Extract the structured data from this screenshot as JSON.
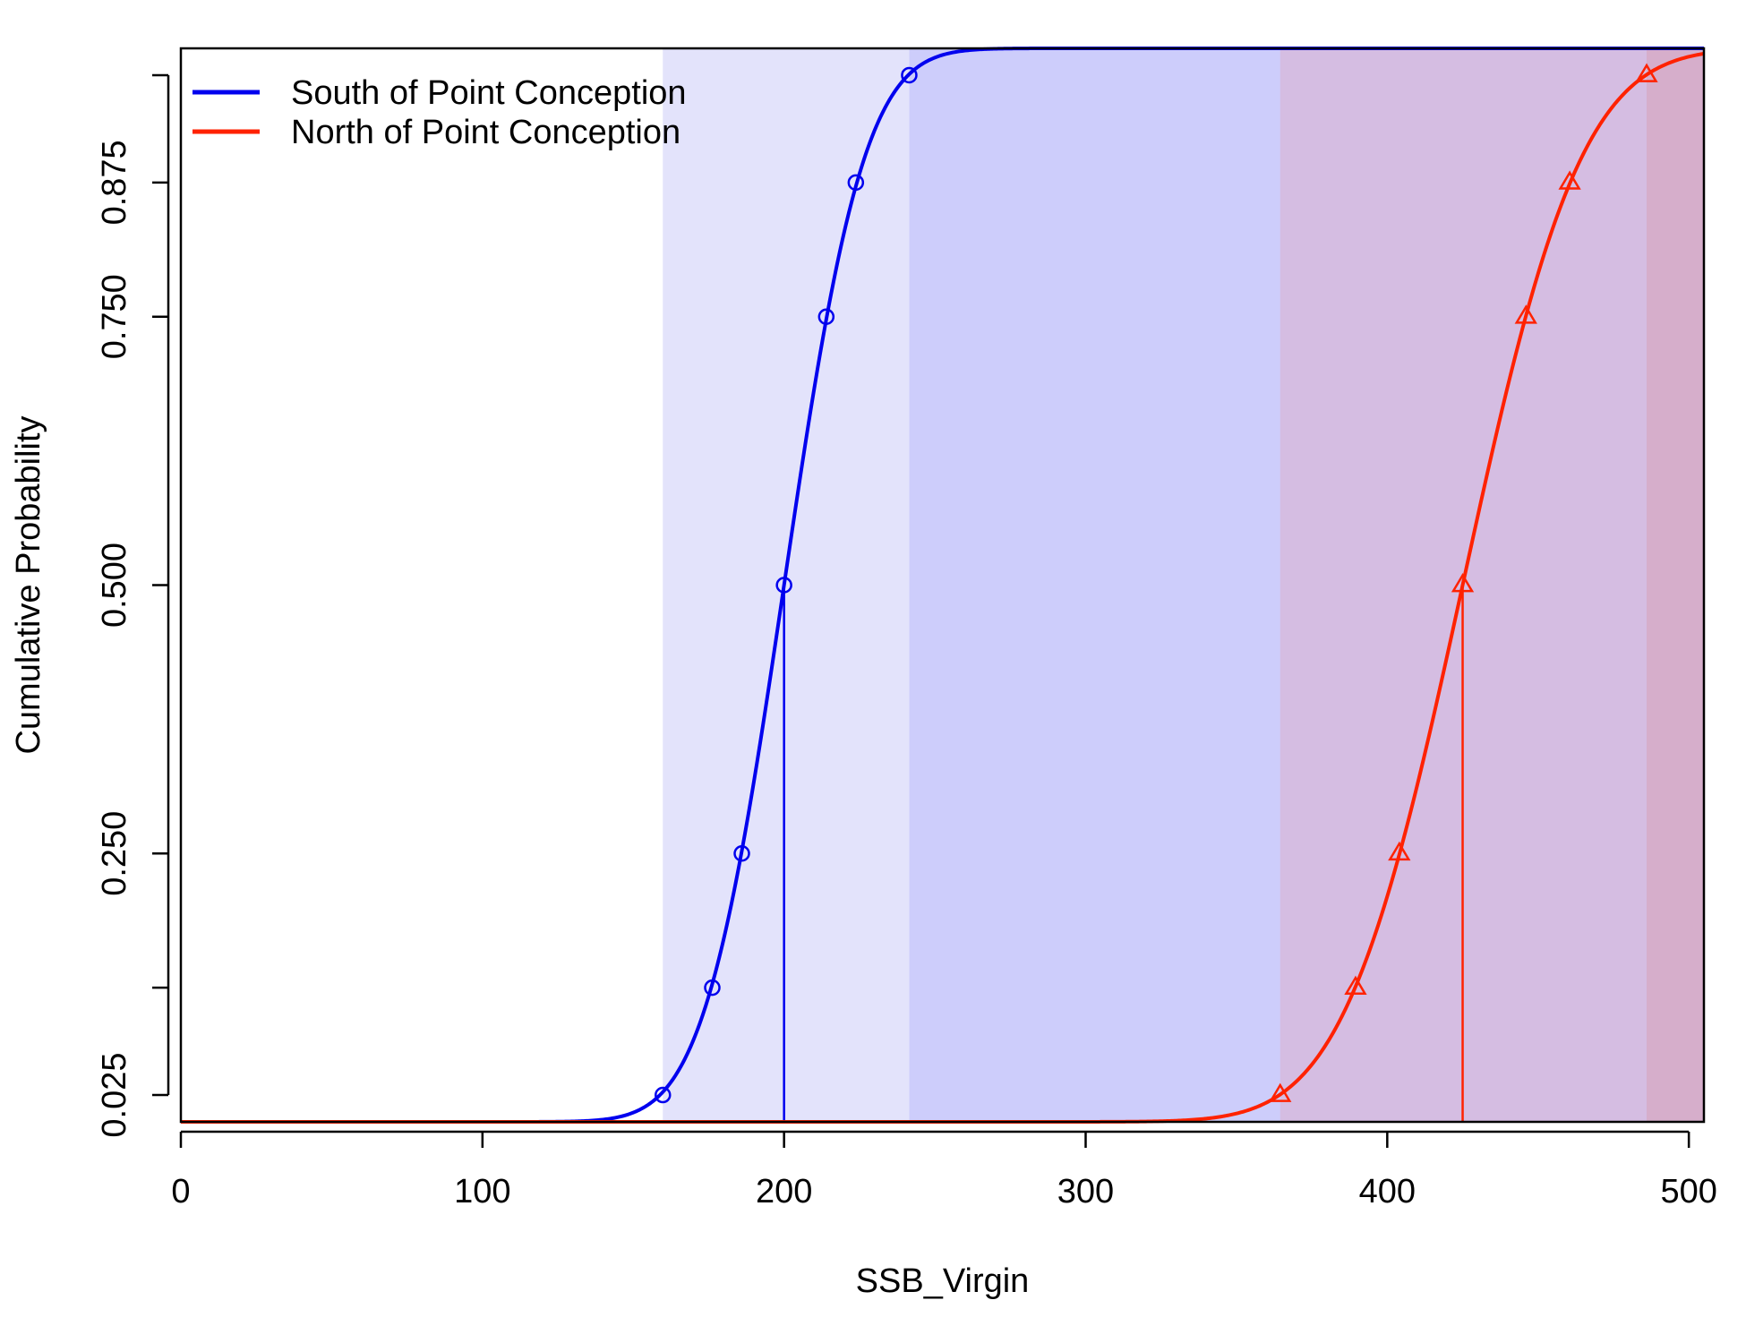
{
  "chart_data": {
    "type": "line",
    "title": "",
    "xlabel": "SSB_Virgin",
    "ylabel": "Cumulative Probability",
    "xlim": [
      0,
      505
    ],
    "ylim": [
      0,
      1
    ],
    "grid": false,
    "legend_position": "top-left",
    "x_ticks": [
      0,
      100,
      200,
      300,
      400,
      500
    ],
    "x_tick_labels": [
      "0",
      "100",
      "200",
      "300",
      "400",
      "500"
    ],
    "y_ticks": [
      0.025,
      0.25,
      0.5,
      0.75,
      0.875
    ],
    "y_tick_labels": [
      "0.025",
      "0.250",
      "0.500",
      "0.750",
      "0.875"
    ],
    "y_minor_ticks": [
      0.125,
      0.975
    ],
    "series": [
      {
        "name": "South of Point Conception",
        "color": "#0000ee",
        "marker": "circle",
        "distribution": {
          "type": "normal",
          "mean": 200,
          "sd": 21
        },
        "quantile_points": [
          {
            "p": 0.025,
            "x": 159.8
          },
          {
            "p": 0.125,
            "x": 176.2
          },
          {
            "p": 0.25,
            "x": 186.0
          },
          {
            "p": 0.5,
            "x": 200.0
          },
          {
            "p": 0.75,
            "x": 214.0
          },
          {
            "p": 0.875,
            "x": 223.8
          },
          {
            "p": 0.975,
            "x": 241.5
          }
        ],
        "median_x": 200,
        "interval_95": [
          159.8,
          241.5
        ]
      },
      {
        "name": "North of Point Conception",
        "color": "#ff2200",
        "marker": "triangle",
        "distribution": {
          "type": "normal",
          "mean": 425,
          "sd": 31
        },
        "quantile_points": [
          {
            "p": 0.025,
            "x": 364.5
          },
          {
            "p": 0.125,
            "x": 389.5
          },
          {
            "p": 0.25,
            "x": 404.0
          },
          {
            "p": 0.5,
            "x": 425.0
          },
          {
            "p": 0.75,
            "x": 446.0
          },
          {
            "p": 0.875,
            "x": 460.5
          },
          {
            "p": 0.975,
            "x": 486.0
          }
        ],
        "median_x": 425,
        "interval_95": [
          364.5,
          486.0
        ]
      }
    ]
  },
  "colors": {
    "south_band_inner": "#e3e3fb",
    "south_band_outer": "#cdcdfb",
    "north_band_inner": "#d5bde2",
    "north_band_outer": "#d6aecb",
    "axis": "#000000"
  }
}
